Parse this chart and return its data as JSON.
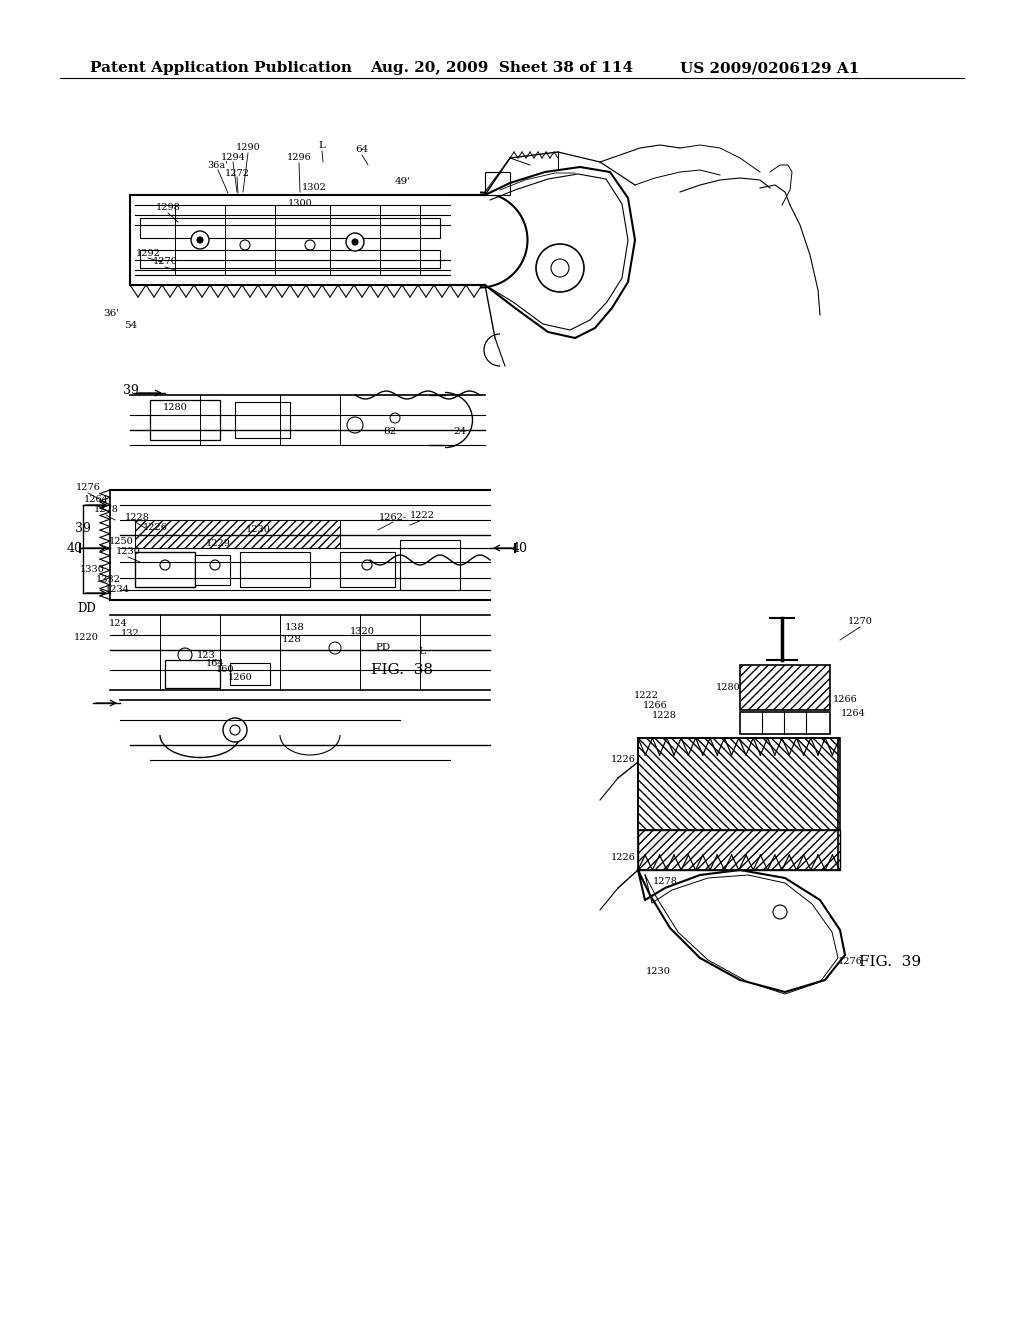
{
  "page_width": 10.24,
  "page_height": 13.2,
  "dpi": 100,
  "background_color": "#ffffff",
  "header_text_left": "Patent Application Publication",
  "header_text_mid": "Aug. 20, 2009  Sheet 38 of 114",
  "header_text_right": "US 2009/0206129 A1",
  "header_fontsize": 11,
  "line_color": "#000000",
  "text_color": "#000000"
}
